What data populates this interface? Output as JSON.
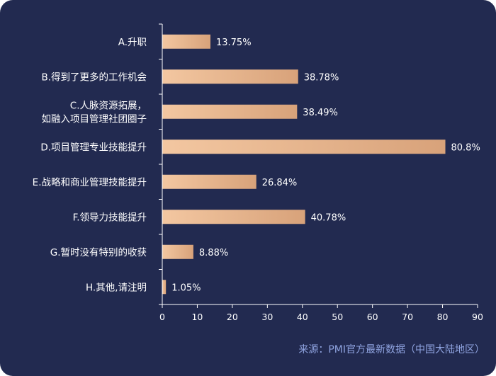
{
  "chart_data": {
    "type": "bar",
    "orientation": "horizontal",
    "categories": [
      [
        "A.升职"
      ],
      [
        "B.得到了更多的工作机会"
      ],
      [
        "C.人脉资源拓展，",
        "如融入项目管理社团圈子"
      ],
      [
        "D.项目管理专业技能提升"
      ],
      [
        "E.战略和商业管理技能提升"
      ],
      [
        "F.领导力技能提升"
      ],
      [
        "G.暂时没有特别的收获"
      ],
      [
        "H.其他,请注明"
      ]
    ],
    "values": [
      13.75,
      38.78,
      38.49,
      80.8,
      26.84,
      40.78,
      8.88,
      1.05
    ],
    "value_labels": [
      "13.75%",
      "38.78%",
      "38.49%",
      "80.8%",
      "26.84%",
      "40.78%",
      "8.88%",
      "1.05%"
    ],
    "xlim": [
      0,
      90
    ],
    "x_ticks": [
      "0",
      "10",
      "20",
      "30",
      "40",
      "50",
      "60",
      "70",
      "80",
      "90"
    ],
    "grid": false,
    "bar_color_start": "#f3c7a1",
    "bar_color_end": "#d8a27a",
    "axis_color": "#ffffff"
  },
  "background_color": "#222a50",
  "source": "来源：PMI官方最新数据（中国大陆地区）"
}
